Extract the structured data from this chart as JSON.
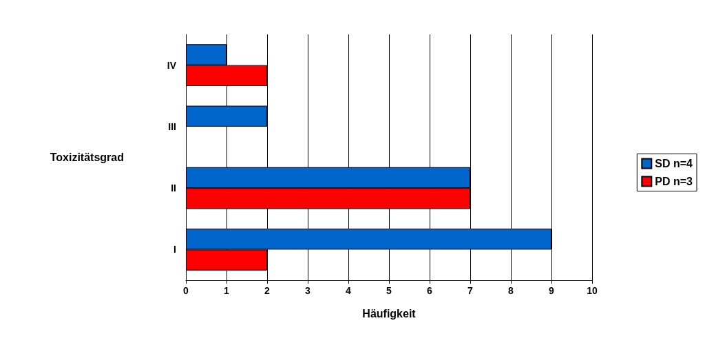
{
  "chart_data": {
    "type": "bar",
    "orientation": "horizontal",
    "xlabel": "Häufigkeit",
    "ylabel": "Toxizitätsgrad",
    "categories": [
      "IV",
      "III",
      "II",
      "I"
    ],
    "series": [
      {
        "name": "SD n=4",
        "color": "#0066cc",
        "values": [
          1,
          2,
          7,
          9
        ]
      },
      {
        "name": "PD n=3",
        "color": "#ff0000",
        "values": [
          2,
          0,
          7,
          2
        ]
      }
    ],
    "xlim": [
      0,
      10
    ],
    "xticks": [
      0,
      1,
      2,
      3,
      4,
      5,
      6,
      7,
      8,
      9,
      10
    ],
    "grid": "x",
    "legend": "right"
  }
}
